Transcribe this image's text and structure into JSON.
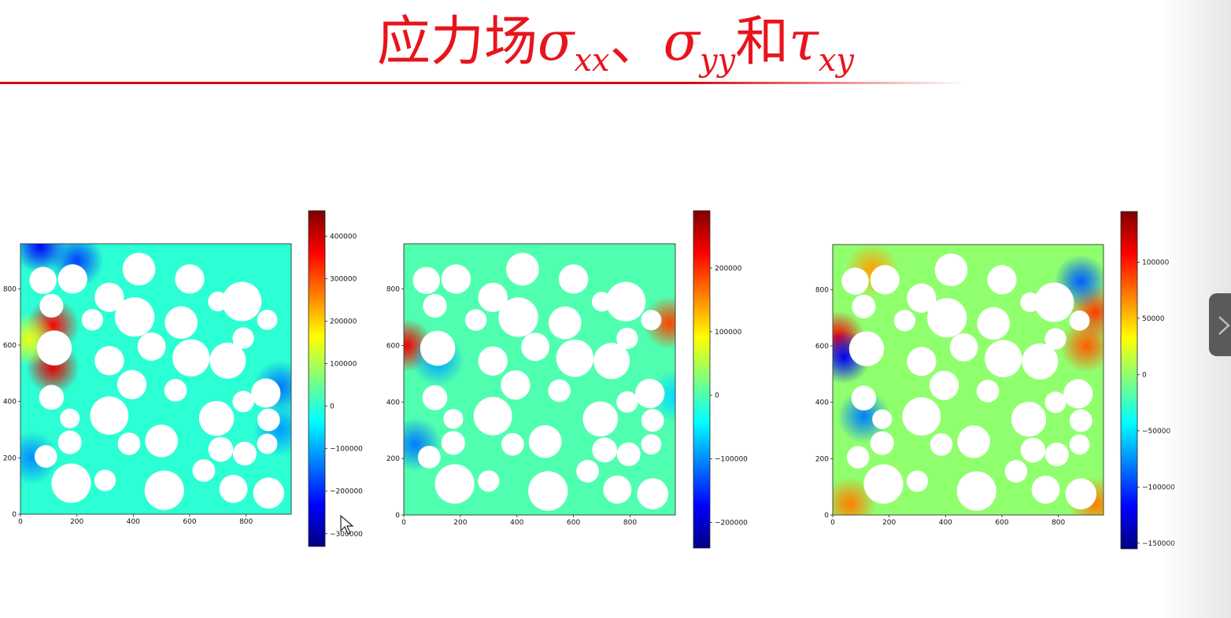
{
  "slide": {
    "title": {
      "main": "应力场",
      "sym1": "σ",
      "sub1": "xx",
      "sep": "、",
      "sym2": "σ",
      "sub2": "yy",
      "conj": "和",
      "sym3": "τ",
      "sub3": "xy"
    }
  },
  "colors": {
    "title": "#e8141c",
    "rule": "#d40000",
    "field_base": "#3cf08c",
    "colormap": [
      "#00007f",
      "#0000ff",
      "#007fff",
      "#00ffff",
      "#7fff7f",
      "#ffff00",
      "#ff7f00",
      "#ff0000",
      "#7f0000"
    ]
  },
  "chart_data": [
    {
      "type": "heatmap",
      "name": "sigma_xx",
      "title": "",
      "xlabel": "",
      "ylabel": "",
      "xlim": [
        0,
        960
      ],
      "ylim": [
        0,
        960
      ],
      "xticks": [
        "0",
        "200",
        "400",
        "600",
        "800"
      ],
      "yticks": [
        "0",
        "200",
        "400",
        "600",
        "800"
      ],
      "colorbar": {
        "range": [
          -330000,
          460000
        ],
        "ticks": [
          "400000",
          "300000",
          "200000",
          "100000",
          "0",
          "−100000",
          "−200000",
          "−300000"
        ],
        "tick_values": [
          400000,
          300000,
          200000,
          100000,
          0,
          -100000,
          -200000,
          -300000
        ]
      },
      "hotspots": [
        {
          "x": 115,
          "y": 670,
          "v": 360000
        },
        {
          "x": 115,
          "y": 520,
          "v": 380000
        },
        {
          "x": 70,
          "y": 950,
          "v": -230000
        },
        {
          "x": 200,
          "y": 900,
          "v": -180000
        },
        {
          "x": 40,
          "y": 200,
          "v": -120000
        },
        {
          "x": 920,
          "y": 450,
          "v": -140000
        },
        {
          "x": 920,
          "y": 300,
          "v": -110000
        },
        {
          "x": 30,
          "y": 620,
          "v": 150000
        }
      ]
    },
    {
      "type": "heatmap",
      "name": "sigma_yy",
      "title": "",
      "xlabel": "",
      "ylabel": "",
      "xlim": [
        0,
        960
      ],
      "ylim": [
        0,
        960
      ],
      "xticks": [
        "0",
        "200",
        "400",
        "600",
        "800"
      ],
      "yticks": [
        "0",
        "200",
        "400",
        "600",
        "800"
      ],
      "colorbar": {
        "range": [
          -240000,
          290000
        ],
        "ticks": [
          "200000",
          "100000",
          "0",
          "−100000",
          "−200000"
        ],
        "tick_values": [
          200000,
          100000,
          0,
          -100000,
          -200000
        ]
      },
      "hotspots": [
        {
          "x": 10,
          "y": 600,
          "v": 230000
        },
        {
          "x": 940,
          "y": 680,
          "v": 190000
        },
        {
          "x": 40,
          "y": 250,
          "v": -110000
        },
        {
          "x": 120,
          "y": 550,
          "v": -90000
        },
        {
          "x": 960,
          "y": 420,
          "v": -60000
        }
      ]
    },
    {
      "type": "heatmap",
      "name": "tau_xy",
      "title": "",
      "xlabel": "",
      "ylabel": "",
      "xlim": [
        0,
        960
      ],
      "ylim": [
        0,
        960
      ],
      "xticks": [
        "0",
        "200",
        "400",
        "600",
        "800"
      ],
      "yticks": [
        "0",
        "200",
        "400",
        "600",
        "800"
      ],
      "colorbar": {
        "range": [
          -155000,
          145000
        ],
        "ticks": [
          "100000",
          "50000",
          "0",
          "−50000",
          "−100000",
          "−150000"
        ],
        "tick_values": [
          100000,
          50000,
          0,
          -50000,
          -100000,
          -150000
        ]
      },
      "hotspots": [
        {
          "x": 20,
          "y": 630,
          "v": 110000
        },
        {
          "x": 40,
          "y": 560,
          "v": -120000
        },
        {
          "x": 110,
          "y": 350,
          "v": -80000
        },
        {
          "x": 140,
          "y": 870,
          "v": 60000
        },
        {
          "x": 900,
          "y": 600,
          "v": 80000
        },
        {
          "x": 930,
          "y": 720,
          "v": 90000
        },
        {
          "x": 880,
          "y": 830,
          "v": -90000
        },
        {
          "x": 60,
          "y": 40,
          "v": 70000
        },
        {
          "x": 930,
          "y": 40,
          "v": 70000
        }
      ]
    }
  ],
  "inclusions": [
    {
      "x": 80,
      "y": 830,
      "r": 48
    },
    {
      "x": 185,
      "y": 835,
      "r": 52
    },
    {
      "x": 110,
      "y": 740,
      "r": 42
    },
    {
      "x": 315,
      "y": 770,
      "r": 52
    },
    {
      "x": 420,
      "y": 870,
      "r": 58
    },
    {
      "x": 600,
      "y": 835,
      "r": 52
    },
    {
      "x": 700,
      "y": 755,
      "r": 35
    },
    {
      "x": 785,
      "y": 755,
      "r": 70
    },
    {
      "x": 875,
      "y": 690,
      "r": 36
    },
    {
      "x": 255,
      "y": 690,
      "r": 38
    },
    {
      "x": 405,
      "y": 700,
      "r": 70
    },
    {
      "x": 570,
      "y": 680,
      "r": 58
    },
    {
      "x": 120,
      "y": 590,
      "r": 62
    },
    {
      "x": 465,
      "y": 595,
      "r": 50
    },
    {
      "x": 605,
      "y": 555,
      "r": 66
    },
    {
      "x": 735,
      "y": 545,
      "r": 64
    },
    {
      "x": 790,
      "y": 625,
      "r": 38
    },
    {
      "x": 315,
      "y": 545,
      "r": 52
    },
    {
      "x": 395,
      "y": 460,
      "r": 52
    },
    {
      "x": 550,
      "y": 440,
      "r": 40
    },
    {
      "x": 870,
      "y": 430,
      "r": 52
    },
    {
      "x": 110,
      "y": 415,
      "r": 44
    },
    {
      "x": 790,
      "y": 400,
      "r": 38
    },
    {
      "x": 175,
      "y": 340,
      "r": 35
    },
    {
      "x": 315,
      "y": 350,
      "r": 68
    },
    {
      "x": 695,
      "y": 340,
      "r": 62
    },
    {
      "x": 880,
      "y": 335,
      "r": 40
    },
    {
      "x": 175,
      "y": 255,
      "r": 42
    },
    {
      "x": 385,
      "y": 250,
      "r": 40
    },
    {
      "x": 500,
      "y": 260,
      "r": 58
    },
    {
      "x": 710,
      "y": 230,
      "r": 44
    },
    {
      "x": 795,
      "y": 215,
      "r": 42
    },
    {
      "x": 875,
      "y": 250,
      "r": 36
    },
    {
      "x": 90,
      "y": 205,
      "r": 40
    },
    {
      "x": 650,
      "y": 155,
      "r": 40
    },
    {
      "x": 180,
      "y": 110,
      "r": 70
    },
    {
      "x": 300,
      "y": 120,
      "r": 38
    },
    {
      "x": 510,
      "y": 85,
      "r": 70
    },
    {
      "x": 755,
      "y": 90,
      "r": 50
    },
    {
      "x": 880,
      "y": 75,
      "r": 55
    }
  ]
}
